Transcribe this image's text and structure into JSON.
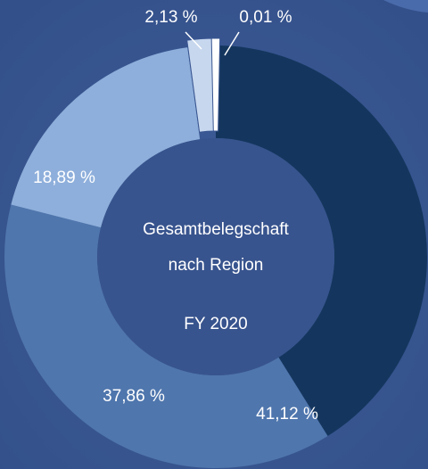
{
  "chart_data": {
    "type": "donut",
    "center_lines": [
      "Gesamtbelegschaft",
      "nach Region",
      "FY 2020"
    ],
    "values": [
      41.12,
      37.86,
      18.89,
      2.13,
      0.01
    ],
    "value_labels": [
      "41,12 %",
      "37,86 %",
      "18,89 %",
      "2,13 %",
      "0,01 %"
    ],
    "colors": [
      "#14365e",
      "#4f76ad",
      "#8eafdb",
      "#c6d7ee",
      "#ffffff"
    ]
  }
}
